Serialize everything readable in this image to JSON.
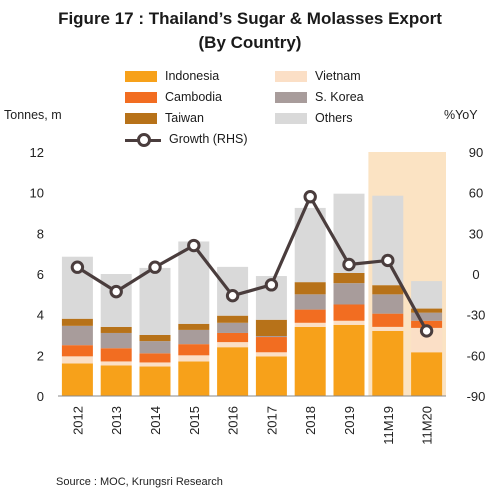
{
  "header": {
    "title_line1": "Figure 17 : Thailand’s Sugar & Molasses Export",
    "title_line2": "(By Country)"
  },
  "axes": {
    "left_label": "Tonnes, m",
    "right_label": "%YoY"
  },
  "source": "Source : MOC, Krungsri Research",
  "colors": {
    "Indonesia": "#f7a11a",
    "Vietnam": "#fbdfc6",
    "Cambodia": "#f26d21",
    "S. Korea": "#a89c9b",
    "Taiwan": "#b77219",
    "Others": "#d9d9d9",
    "Growth": "#4a3d3d",
    "highlight": "#fbe3c3"
  },
  "chart_data": {
    "type": "bar",
    "stacked": true,
    "categories": [
      "2012",
      "2013",
      "2014",
      "2015",
      "2016",
      "2017",
      "2018",
      "2019",
      "11M19",
      "11M20"
    ],
    "highlighted_categories": [
      "11M19",
      "11M20"
    ],
    "series": [
      {
        "name": "Indonesia",
        "values": [
          1.6,
          1.5,
          1.45,
          1.7,
          2.4,
          1.95,
          3.4,
          3.5,
          3.2,
          2.15
        ]
      },
      {
        "name": "Vietnam",
        "values": [
          0.35,
          0.2,
          0.2,
          0.3,
          0.25,
          0.2,
          0.2,
          0.2,
          0.2,
          1.2
        ]
      },
      {
        "name": "Cambodia",
        "values": [
          0.55,
          0.65,
          0.45,
          0.55,
          0.45,
          0.75,
          0.65,
          0.8,
          0.65,
          0.35
        ]
      },
      {
        "name": "S. Korea",
        "values": [
          0.95,
          0.75,
          0.6,
          0.7,
          0.5,
          0.05,
          0.75,
          1.05,
          0.95,
          0.4
        ]
      },
      {
        "name": "Taiwan",
        "values": [
          0.35,
          0.3,
          0.3,
          0.3,
          0.35,
          0.8,
          0.6,
          0.5,
          0.45,
          0.2
        ]
      },
      {
        "name": "Others",
        "values": [
          3.05,
          2.6,
          3.3,
          4.05,
          2.4,
          2.15,
          3.65,
          3.9,
          4.4,
          1.35
        ]
      }
    ],
    "line_series": {
      "name": "Growth (RHS)",
      "axis": "right",
      "values": [
        5,
        -13,
        5,
        21,
        -16,
        -8,
        57,
        7,
        10,
        -42
      ]
    },
    "y_left": {
      "min": 0,
      "max": 12,
      "ticks": [
        0,
        2,
        4,
        6,
        8,
        10,
        12
      ]
    },
    "y_right": {
      "min": -90,
      "max": 90,
      "ticks": [
        -90,
        -60,
        -30,
        0,
        30,
        60,
        90
      ]
    },
    "legend": {
      "position": "top",
      "entries": [
        "Indonesia",
        "Vietnam",
        "Cambodia",
        "S. Korea",
        "Taiwan",
        "Others",
        "Growth (RHS)"
      ]
    },
    "grid": false
  }
}
